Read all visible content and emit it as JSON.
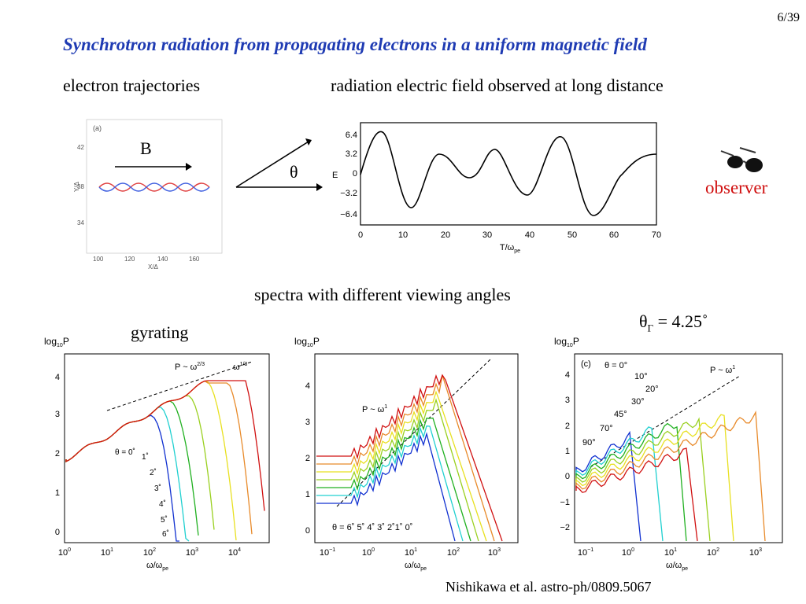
{
  "page_number": "6/39",
  "title": "Synchrotron radiation from propagating electrons in a uniform magnetic field",
  "labels": {
    "trajectories": "electron trajectories",
    "radiation": "radiation electric field observed at long distance",
    "spectra": "spectra with different viewing angles",
    "gyrating": "gyrating",
    "theta_gamma": "θ",
    "theta_gamma_sub": "Γ",
    "theta_gamma_val": "= 4.25˚",
    "observer": "observer",
    "citation": "Nishikawa et al. astro-ph/0809.5067",
    "B": "B",
    "theta": "θ"
  },
  "panel_a": {
    "tag": "(a)",
    "ylabel": "Y/Δ",
    "xlabel": "X/Δ",
    "yticks": [
      "42",
      "38",
      "34"
    ],
    "xticks": [
      "100",
      "120",
      "140",
      "160"
    ]
  },
  "efield": {
    "ylabel": "E",
    "xlabel": "T/ω",
    "xlabel_sub": "pe",
    "yticks": [
      "6.4",
      "3.2",
      "0",
      "−3.2",
      "−6.4"
    ],
    "xticks": [
      "0",
      "10",
      "20",
      "30",
      "40",
      "50",
      "60",
      "70"
    ]
  },
  "spec1": {
    "ylabel": "log",
    "ylabel_sub": "10",
    "ylabel_tail": "P",
    "yticks": [
      "4",
      "3",
      "2",
      "1",
      "0"
    ],
    "xticks": [
      "10",
      "10",
      "10",
      "10",
      "10"
    ],
    "xexps": [
      "0",
      "1",
      "2",
      "3",
      "4"
    ],
    "xlabel": "ω/ω",
    "xlabel_sub": "pe",
    "ann_a": "P ~ ω",
    "ann_a_exp": "2/3",
    "ann_b": "ω",
    "ann_b_exp": "1/3",
    "angles": [
      "θ = 0˚",
      "1˚",
      "2˚",
      "3˚",
      "4˚",
      "5˚",
      "6˚"
    ]
  },
  "spec2": {
    "ylabel": "log",
    "ylabel_sub": "10",
    "ylabel_tail": "P",
    "yticks": [
      "4",
      "3",
      "2",
      "1",
      "0"
    ],
    "xticks": [
      "10",
      "10",
      "10",
      "10",
      "10"
    ],
    "xexps": [
      "−1",
      "0",
      "1",
      "2",
      "3"
    ],
    "xlabel": "ω/ω",
    "xlabel_sub": "pe",
    "ann": "P ~ ω",
    "ann_exp": "1",
    "angles": "θ = 6˚ 5˚ 4˚ 3˚ 2˚1˚ 0˚"
  },
  "spec3": {
    "tag": "(c)",
    "ylabel": "log",
    "ylabel_sub": "10",
    "ylabel_tail": "P",
    "yticks": [
      "4",
      "3",
      "2",
      "1",
      "0",
      "−1",
      "−2"
    ],
    "xticks": [
      "10",
      "10",
      "10",
      "10",
      "10"
    ],
    "xexps": [
      "−1",
      "0",
      "1",
      "2",
      "3"
    ],
    "xlabel": "ω/ω",
    "xlabel_sub": "pe",
    "ann": "P ~ ω",
    "ann_exp": "1",
    "angles": [
      "θ = 0°",
      "10°",
      "20°",
      "30°",
      "45°",
      "70°",
      "90°"
    ]
  },
  "colors": {
    "title": "#1f3bb3",
    "observer": "#d01010",
    "spectra": [
      "#d01010",
      "#e88a2a",
      "#e8e020",
      "#9ad020",
      "#20b020",
      "#20d0d0",
      "#1030d0"
    ]
  }
}
